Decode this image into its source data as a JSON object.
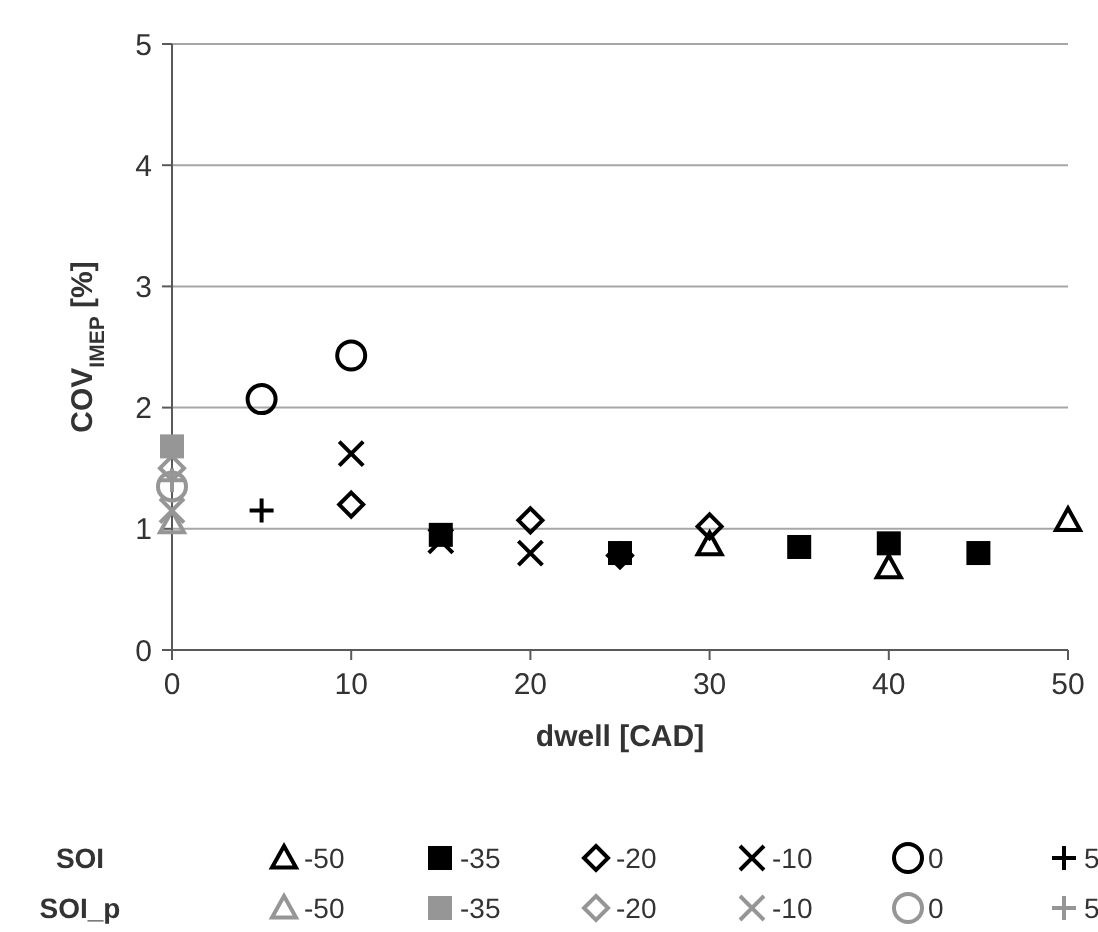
{
  "chart_data": {
    "type": "scatter",
    "xlabel": "dwell [CAD]",
    "ylabel": "COV$_{IMEP}$ [%]",
    "xlim": [
      0,
      50
    ],
    "xticks": [
      0,
      10,
      20,
      30,
      40,
      50
    ],
    "ylim": [
      0,
      5
    ],
    "yticks": [
      0,
      1,
      2,
      3,
      4,
      5
    ],
    "grid": "y",
    "legend": "bottom",
    "annotations": [
      "SOI",
      "SOI_p"
    ],
    "series": [
      {
        "name": "-50",
        "color": "#000000",
        "marker": "triangle",
        "x": [
          30,
          40,
          50
        ],
        "values": [
          0.87,
          0.68,
          1.07
        ]
      },
      {
        "name": "-35",
        "color": "#000000",
        "marker": "square",
        "x": [
          15,
          25,
          35,
          40,
          45
        ],
        "values": [
          0.95,
          0.8,
          0.85,
          0.88,
          0.8
        ]
      },
      {
        "name": "-20",
        "color": "#000000",
        "marker": "diamond",
        "x": [
          10,
          20,
          25,
          30
        ],
        "values": [
          1.2,
          1.07,
          0.78,
          1.02
        ]
      },
      {
        "name": "-10",
        "color": "#000000",
        "marker": "cross",
        "x": [
          10,
          15,
          20
        ],
        "values": [
          1.62,
          0.9,
          0.8
        ]
      },
      {
        "name": "0",
        "color": "#000000",
        "marker": "circle",
        "x": [
          5,
          10
        ],
        "values": [
          2.07,
          2.43
        ]
      },
      {
        "name": "5",
        "color": "#000000",
        "marker": "plus",
        "x": [
          5
        ],
        "values": [
          1.15
        ]
      },
      {
        "name": "-50",
        "color": "#969696",
        "marker": "triangle",
        "x": [
          0
        ],
        "values": [
          1.05
        ]
      },
      {
        "name": "-35",
        "color": "#969696",
        "marker": "square",
        "x": [
          0
        ],
        "values": [
          1.68
        ]
      },
      {
        "name": "-20",
        "color": "#969696",
        "marker": "diamond",
        "x": [
          0
        ],
        "values": [
          1.5
        ]
      },
      {
        "name": "-10",
        "color": "#969696",
        "marker": "cross",
        "x": [
          0
        ],
        "values": [
          1.15
        ]
      },
      {
        "name": "0",
        "color": "#969696",
        "marker": "circle",
        "x": [
          0
        ],
        "values": [
          1.35
        ]
      },
      {
        "name": "5",
        "color": "#969696",
        "marker": "plus",
        "x": [
          0
        ],
        "values": [
          1.4
        ]
      }
    ]
  }
}
